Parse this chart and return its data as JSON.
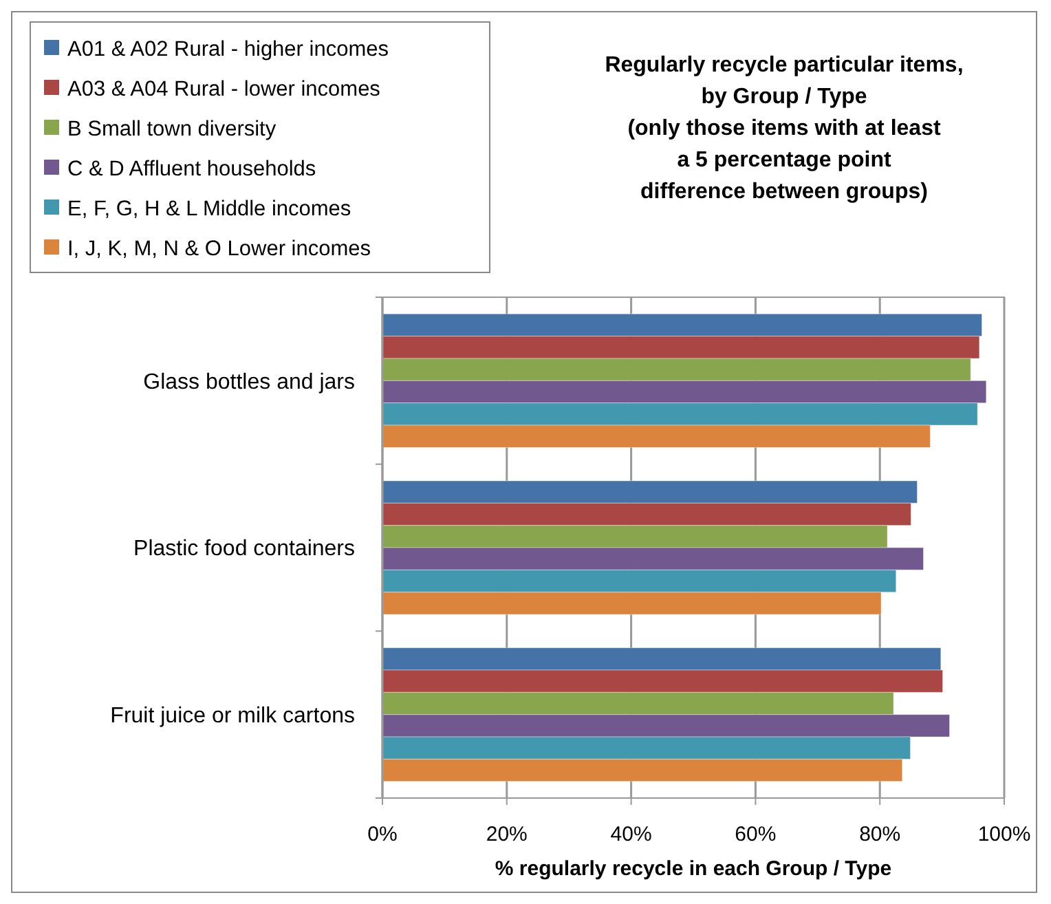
{
  "chart_data": {
    "type": "bar",
    "orientation": "horizontal",
    "title": "Regularly recycle particular items,\nby Group / Type\n(only those items with at least\na 5 percentage point\ndifference between groups)",
    "xlabel": "% regularly recycle in each Group / Type",
    "categories": [
      "Glass bottles and jars",
      "Plastic food containers",
      "Fruit juice or milk cartons"
    ],
    "series": [
      {
        "name": "A01 & A02 Rural - higher incomes",
        "color": "#4572a7",
        "values": [
          96.4,
          86.0,
          89.8
        ]
      },
      {
        "name": "A03 & A04 Rural - lower incomes",
        "color": "#aa4643",
        "values": [
          96.0,
          85.0,
          90.1
        ]
      },
      {
        "name": "B Small town diversity",
        "color": "#89a54e",
        "values": [
          94.6,
          81.2,
          82.2
        ]
      },
      {
        "name": "C & D Affluent households",
        "color": "#71588f",
        "values": [
          97.1,
          87.0,
          91.2
        ]
      },
      {
        "name": "E, F, G, H & L Middle incomes",
        "color": "#4198af",
        "values": [
          95.7,
          82.6,
          84.9
        ]
      },
      {
        "name": "I, J, K, M, N & O Lower incomes",
        "color": "#db843d",
        "values": [
          88.1,
          80.2,
          83.6
        ]
      }
    ],
    "xlim": [
      0,
      100
    ],
    "xticks": [
      {
        "value": 0,
        "label": "0%"
      },
      {
        "value": 20,
        "label": "20%"
      },
      {
        "value": 40,
        "label": "40%"
      },
      {
        "value": 60,
        "label": "60%"
      },
      {
        "value": 80,
        "label": "80%"
      },
      {
        "value": 100,
        "label": "100%"
      }
    ],
    "grid": "x",
    "legend": "top left"
  }
}
